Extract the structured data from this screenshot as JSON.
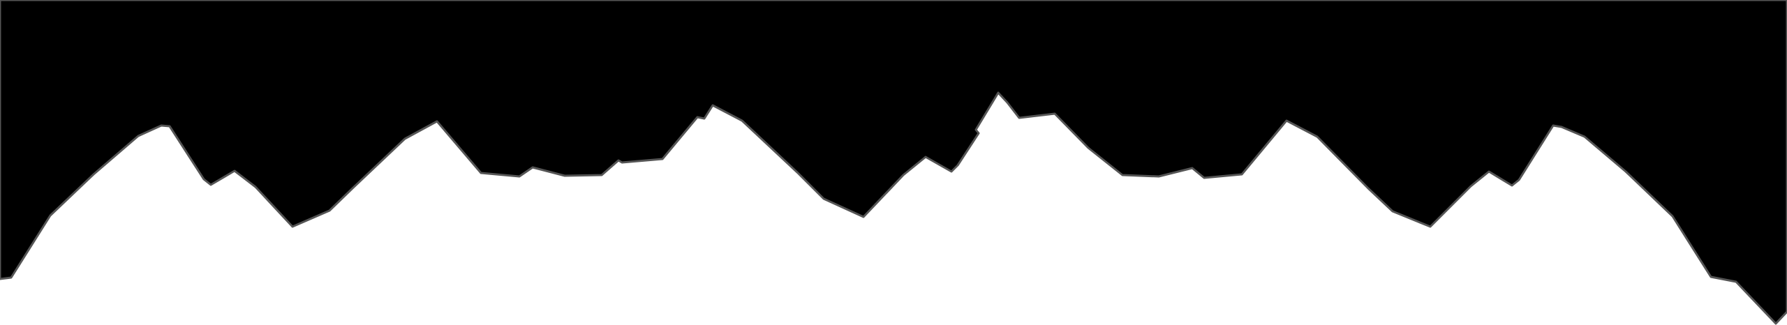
{
  "colors": {
    "sky": "#000000",
    "ground": "#ffffff",
    "outline": "#555555"
  },
  "shapes": {
    "silhouette": "mountain-range"
  }
}
